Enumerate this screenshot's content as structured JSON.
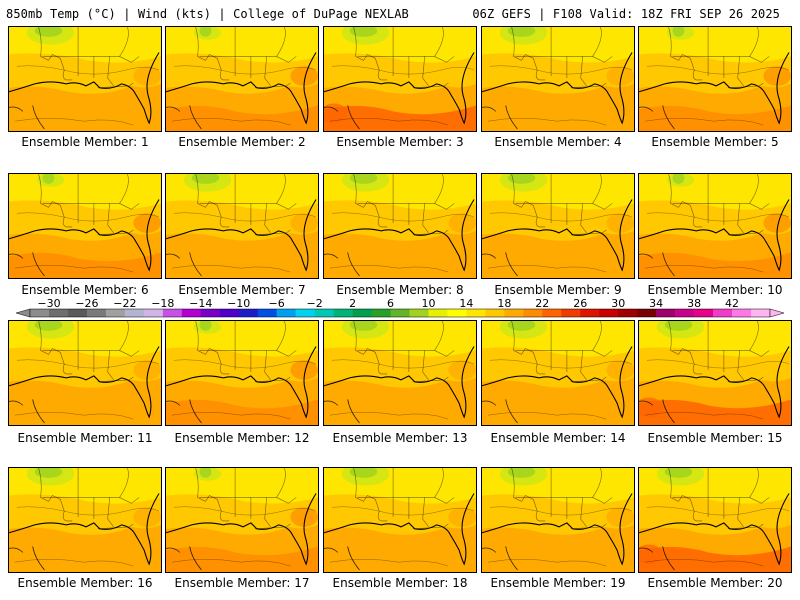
{
  "header": {
    "left": "850mb Temp (°C) | Wind (kts) | College of DuPage NEXLAB",
    "right": "06Z GEFS | F108 Valid: 18Z FRI SEP 26 2025"
  },
  "members": [
    {
      "label": "Ensemble Member: 1",
      "style": 0
    },
    {
      "label": "Ensemble Member: 2",
      "style": 1
    },
    {
      "label": "Ensemble Member: 3",
      "style": 2
    },
    {
      "label": "Ensemble Member: 4",
      "style": 0
    },
    {
      "label": "Ensemble Member: 5",
      "style": 1
    },
    {
      "label": "Ensemble Member: 6",
      "style": 1
    },
    {
      "label": "Ensemble Member: 7",
      "style": 0
    },
    {
      "label": "Ensemble Member: 8",
      "style": 0
    },
    {
      "label": "Ensemble Member: 9",
      "style": 0
    },
    {
      "label": "Ensemble Member: 10",
      "style": 1
    },
    {
      "label": "Ensemble Member: 11",
      "style": 0
    },
    {
      "label": "Ensemble Member: 12",
      "style": 1
    },
    {
      "label": "Ensemble Member: 13",
      "style": 0
    },
    {
      "label": "Ensemble Member: 14",
      "style": 0
    },
    {
      "label": "Ensemble Member: 15",
      "style": 2
    },
    {
      "label": "Ensemble Member: 16",
      "style": 0
    },
    {
      "label": "Ensemble Member: 17",
      "style": 1
    },
    {
      "label": "Ensemble Member: 18",
      "style": 0
    },
    {
      "label": "Ensemble Member: 19",
      "style": 0
    },
    {
      "label": "Ensemble Member: 20",
      "style": 2
    }
  ],
  "colorbar": {
    "tick_labels": [
      "−30",
      "−26",
      "−22",
      "−18",
      "−14",
      "−10",
      "−6",
      "−2",
      "2",
      "6",
      "10",
      "14",
      "18",
      "22",
      "26",
      "30",
      "34",
      "38",
      "42"
    ],
    "colors": [
      "#8c8c8c",
      "#6e6e6e",
      "#5a5a5a",
      "#7a7a7a",
      "#a0a0a0",
      "#b4b4d2",
      "#d2b4e6",
      "#c850e6",
      "#b400d2",
      "#7800c8",
      "#5000c8",
      "#1e1ec8",
      "#0050e6",
      "#00a0f0",
      "#00d2f0",
      "#00c8b4",
      "#00b478",
      "#00a050",
      "#28a028",
      "#64b428",
      "#a0d21e",
      "#e6f000",
      "#ffff00",
      "#ffe600",
      "#ffc800",
      "#ffaa00",
      "#ff8c00",
      "#ff6400",
      "#f03c00",
      "#dc1400",
      "#c80000",
      "#a00000",
      "#780000",
      "#a0006e",
      "#c8008c",
      "#e6008c",
      "#f03cc8",
      "#ff78e6",
      "#ffb4f0"
    ]
  },
  "theme": {
    "yellow": "#ffe600",
    "gold": "#ffc800",
    "orange": "#ffaa00",
    "dark_orange": "#ff8c00",
    "red_orange": "#ff6400",
    "light_green": "#a0d21e",
    "yellow_green": "#d2e614"
  }
}
